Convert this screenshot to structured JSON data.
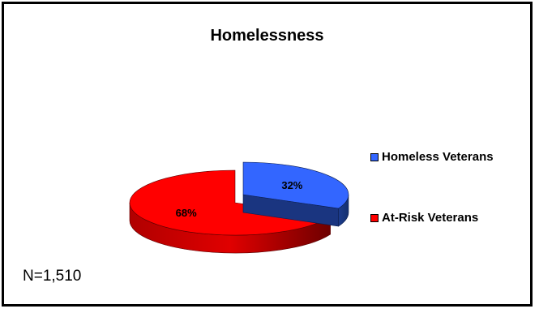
{
  "chart_data": {
    "type": "pie",
    "title": "Homelessness",
    "slices": [
      {
        "label": "Homeless Veterans",
        "value": 32,
        "value_label": "32%",
        "color": "#3366ff"
      },
      {
        "label": "At-Risk Veterans",
        "value": 68,
        "value_label": "68%",
        "color": "#ff0000"
      }
    ],
    "legend_position": "right",
    "note": "N=1,510"
  }
}
